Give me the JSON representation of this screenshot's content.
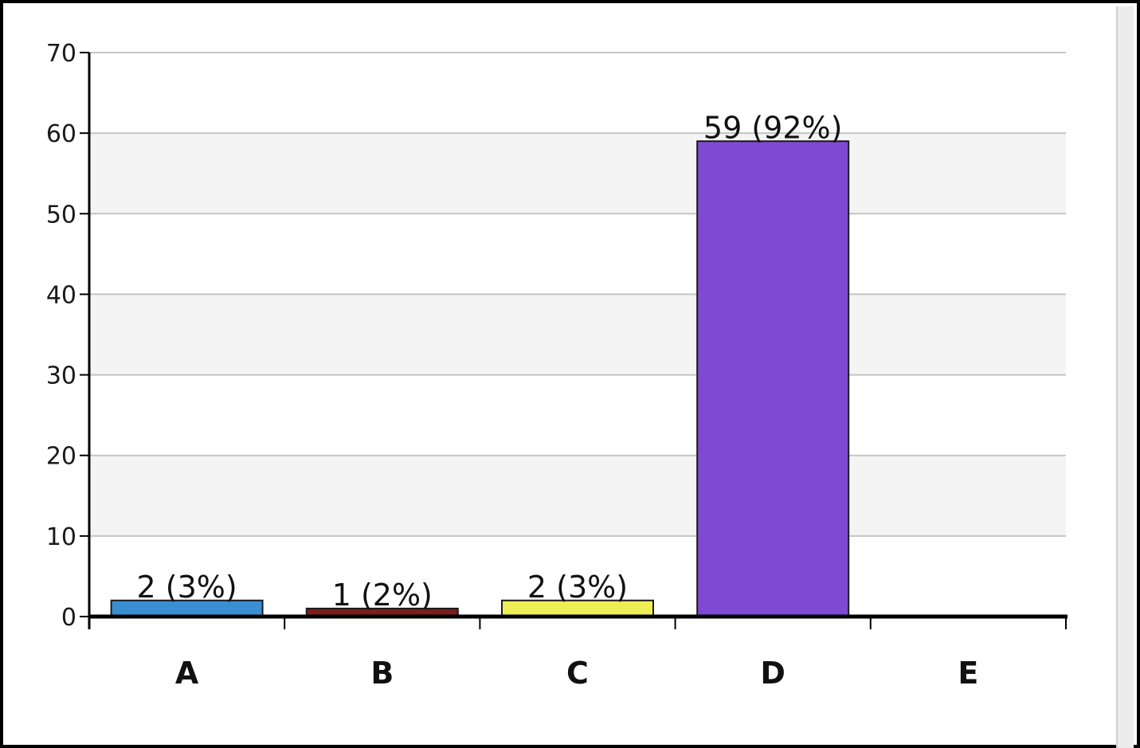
{
  "chart_data": {
    "type": "bar",
    "categories": [
      "A",
      "B",
      "C",
      "D",
      "E"
    ],
    "values": [
      2,
      1,
      2,
      59,
      0
    ],
    "data_labels": [
      "2 (3%)",
      "1 (2%)",
      "2 (3%)",
      "59 (92%)",
      ""
    ],
    "colors": [
      "#3a8fd2",
      "#7a1e1e",
      "#eeee55",
      "#8049d4",
      "#999999"
    ],
    "ylim": [
      0,
      70
    ],
    "yticks": [
      "0",
      "10",
      "20",
      "30",
      "40",
      "50",
      "60",
      "70"
    ],
    "grid": true,
    "band_color": "#f4f4f4",
    "title": "",
    "xlabel": "",
    "ylabel": ""
  }
}
